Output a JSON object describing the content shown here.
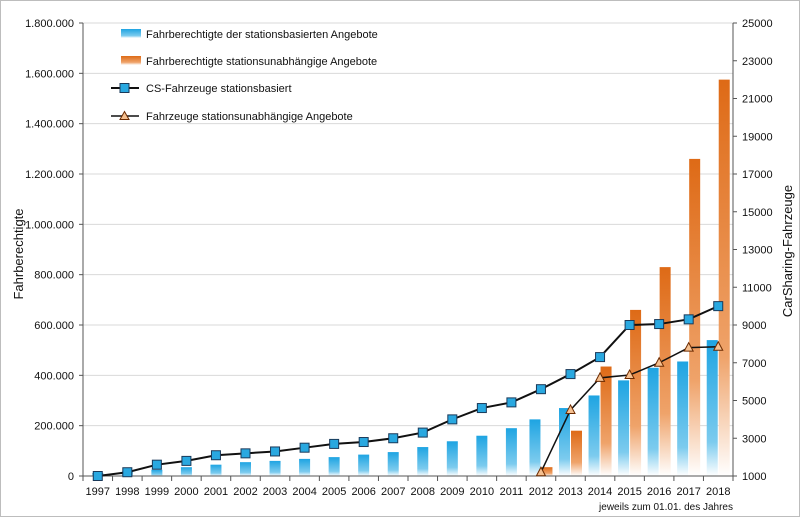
{
  "chart_data": {
    "type": "bar",
    "categories": [
      "1997",
      "1998",
      "1999",
      "2000",
      "2001",
      "2002",
      "2003",
      "2004",
      "2005",
      "2006",
      "2007",
      "2008",
      "2009",
      "2010",
      "2011",
      "2012",
      "2013",
      "2014",
      "2015",
      "2016",
      "2017",
      "2018"
    ],
    "ylabel": "Fahrberechtigte",
    "y2label": "CarSharing-Fahrzeuge",
    "xnote": "jeweils  zum 01.01. des Jahres",
    "ylim": [
      0,
      1800000
    ],
    "y2lim": [
      1000,
      25000
    ],
    "yticks": [
      "0",
      "200.000",
      "400.000",
      "600.000",
      "800.000",
      "1.000.000",
      "1.200.000",
      "1.400.000",
      "1.600.000",
      "1.800.000"
    ],
    "y2ticks": [
      "1000",
      "3000",
      "5000",
      "7000",
      "9000",
      "11000",
      "13000",
      "15000",
      "17000",
      "19000",
      "21000",
      "23000",
      "25000"
    ],
    "grid": true,
    "legend_position": "top-left",
    "series": [
      {
        "name": "Fahrberechtigte der stationsbasierten Angebote",
        "kind": "bar",
        "axis": "left",
        "color": "#29a8e0",
        "values": [
          12000,
          18000,
          25000,
          35000,
          45000,
          55000,
          60000,
          68000,
          75000,
          85000,
          95000,
          115000,
          138000,
          160000,
          190000,
          225000,
          270000,
          320000,
          380000,
          430000,
          455000,
          540000
        ]
      },
      {
        "name": "Fahrberechtigte stationsunabhängige Angebote",
        "kind": "bar",
        "axis": "left",
        "color": "#e07020",
        "values": [
          null,
          null,
          null,
          null,
          null,
          null,
          null,
          null,
          null,
          null,
          null,
          null,
          null,
          null,
          null,
          35000,
          180000,
          435000,
          660000,
          830000,
          1260000,
          1575000
        ]
      },
      {
        "name": "CS-Fahrzeuge stationsbasiert",
        "kind": "line",
        "axis": "right",
        "marker": "square",
        "color": "#29a8e0",
        "values": [
          1000,
          1200,
          1600,
          1800,
          2100,
          2200,
          2300,
          2500,
          2700,
          2800,
          3000,
          3300,
          4000,
          4600,
          4900,
          5600,
          6400,
          7300,
          9000,
          9050,
          9300,
          10000
        ]
      },
      {
        "name": "Fahrzeuge stationsunabhängige Angebote",
        "kind": "line",
        "axis": "right",
        "marker": "triangle",
        "color": "#e07020",
        "values": [
          null,
          null,
          null,
          null,
          null,
          null,
          null,
          null,
          null,
          null,
          null,
          null,
          null,
          null,
          null,
          1200,
          4500,
          6200,
          6350,
          7000,
          7800,
          7850
        ]
      }
    ]
  }
}
